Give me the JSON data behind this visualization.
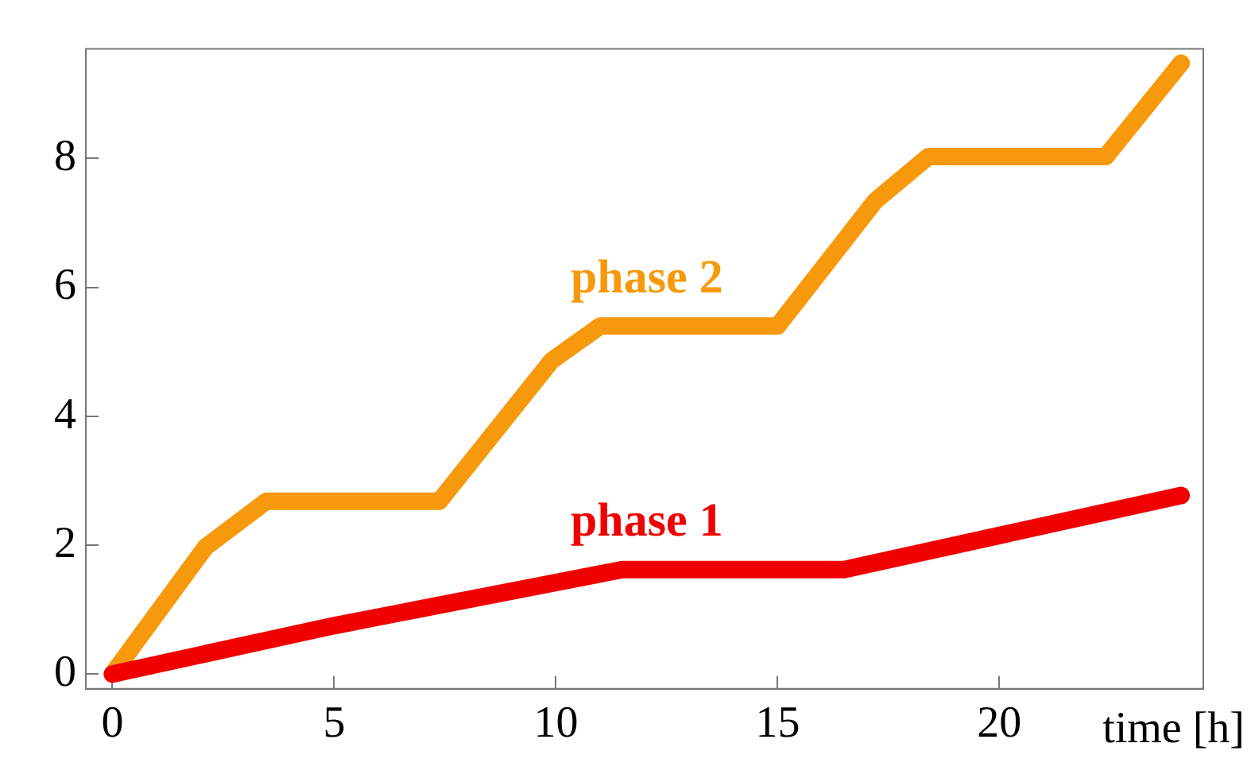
{
  "chart_data": {
    "type": "line",
    "xlabel": "time [h]",
    "xlim": [
      -0.6,
      24.6
    ],
    "ylim": [
      -0.23,
      9.7
    ],
    "xticks": [
      0,
      5,
      10,
      15,
      20
    ],
    "yticks": [
      0,
      2,
      4,
      6,
      8
    ],
    "grid": false,
    "legend": false,
    "marker": "none",
    "line_style": "solid",
    "series": [
      {
        "name": "phase 1",
        "color": "#f00000",
        "x": [
          0,
          5,
          11.5,
          16.5,
          24.1
        ],
        "values": [
          0,
          0.75,
          1.62,
          1.62,
          2.77
        ]
      },
      {
        "name": "phase 2",
        "color": "#f7990c",
        "x": [
          0,
          2.1,
          3.47,
          7.37,
          9.9,
          11,
          15,
          17.2,
          18.4,
          22.4,
          24.1
        ],
        "values": [
          0,
          1.97,
          2.68,
          2.68,
          4.86,
          5.4,
          5.4,
          7.34,
          8.03,
          8.03,
          9.48
        ]
      }
    ]
  }
}
